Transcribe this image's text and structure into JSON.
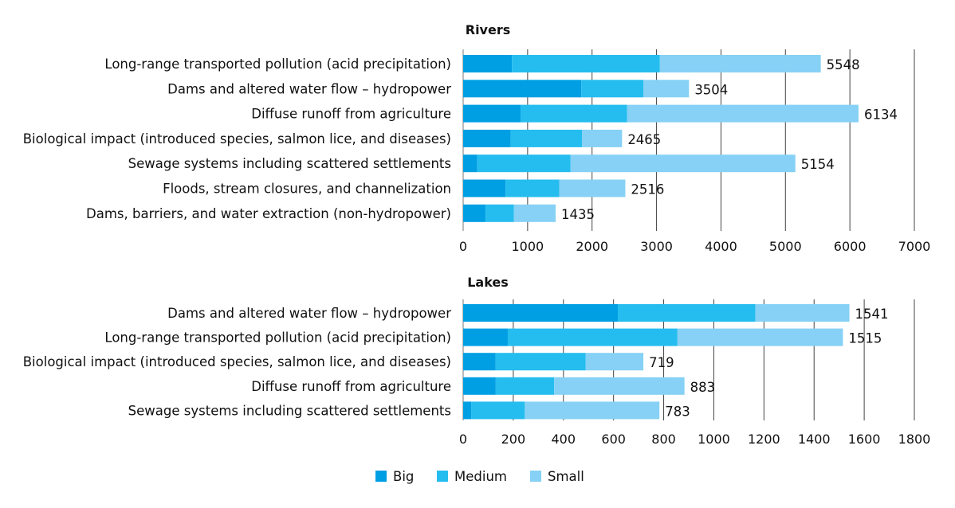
{
  "colors": {
    "Big": "#009fe3",
    "Medium": "#25bdef",
    "Small": "#86d1f5"
  },
  "legend": {
    "items": [
      "Big",
      "Medium",
      "Small"
    ],
    "placement": "bottom"
  },
  "chart_data": [
    {
      "type": "bar",
      "orientation": "horizontal",
      "stacked": true,
      "title": "Rivers",
      "categories": [
        "Long-range transported pollution (acid precipitation)",
        "Dams and altered water flow – hydropower",
        "Diffuse runoff from agriculture",
        "Biological impact (introduced species, salmon lice, and diseases)",
        "Sewage systems including scattered settlements",
        "Floods, stream closures, and channelization",
        "Dams, barriers, and water extraction (non-hydropower)"
      ],
      "series": [
        {
          "name": "Big",
          "values": [
            757,
            1833,
            890,
            738,
            219,
            657,
            348
          ]
        },
        {
          "name": "Medium",
          "values": [
            2295,
            962,
            1653,
            1105,
            1448,
            833,
            438
          ]
        },
        {
          "name": "Small",
          "values": [
            2496,
            709,
            3591,
            622,
            3487,
            1026,
            649
          ]
        }
      ],
      "totals": [
        "5548",
        "3504",
        "6134",
        "2465",
        "5154",
        "2516",
        "1435"
      ],
      "xlim": [
        0,
        7000
      ],
      "xticks": [
        "0",
        "1000",
        "2000",
        "3000",
        "4000",
        "5000",
        "6000",
        "7000"
      ],
      "grid": "vertical"
    },
    {
      "type": "bar",
      "orientation": "horizontal",
      "stacked": true,
      "title": "Lakes",
      "categories": [
        "Dams and altered water flow – hydropower",
        "Long-range transported pollution (acid precipitation)",
        "Biological impact (introduced species, salmon lice, and diseases)",
        "Diffuse runoff from agriculture",
        "Sewage systems including scattered settlements"
      ],
      "series": [
        {
          "name": "Big",
          "values": [
            617,
            178,
            129,
            130,
            32
          ]
        },
        {
          "name": "Medium",
          "values": [
            549,
            677,
            360,
            233,
            214
          ]
        },
        {
          "name": "Small",
          "values": [
            375,
            660,
            230,
            520,
            537
          ]
        }
      ],
      "totals": [
        "1541",
        "1515",
        "719",
        "883",
        "783"
      ],
      "xlim": [
        0,
        1800
      ],
      "xticks": [
        "0",
        "200",
        "400",
        "600",
        "800",
        "1000",
        "1200",
        "1400",
        "1600",
        "1800"
      ],
      "grid": "vertical"
    }
  ]
}
